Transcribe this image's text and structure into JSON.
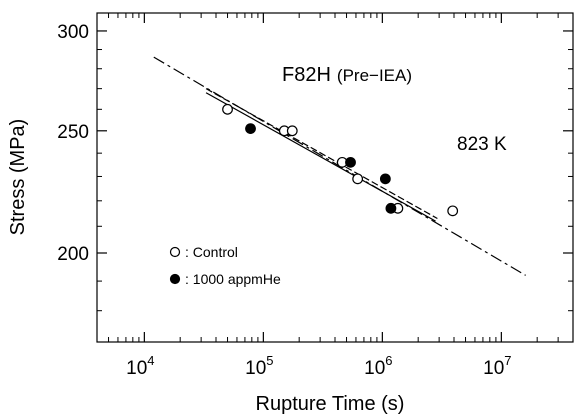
{
  "chart_data": {
    "type": "scatter",
    "xlabel": "Rupture Time  (s)",
    "ylabel": "Stress  (MPa)",
    "xscale": "log",
    "yscale": "log",
    "xlim": [
      4000,
      40000000
    ],
    "ylim": [
      170,
      310
    ],
    "x_ticks": [
      {
        "value": 10000,
        "base": "10",
        "exp": "4"
      },
      {
        "value": 100000,
        "base": "10",
        "exp": "5"
      },
      {
        "value": 1000000,
        "base": "10",
        "exp": "6"
      },
      {
        "value": 10000000,
        "base": "10",
        "exp": "7"
      }
    ],
    "y_ticks": [
      {
        "value": 200,
        "label": "200"
      },
      {
        "value": 250,
        "label": "250"
      },
      {
        "value": 300,
        "label": "300"
      }
    ],
    "annotations": [
      {
        "text": "F82H",
        "size": "large"
      },
      {
        "text": "(Pre−IEA)",
        "size": "small"
      },
      {
        "text": "823 K",
        "size": "large"
      }
    ],
    "legend": {
      "placement": "bottom-left",
      "entries": [
        {
          "label": ": Control",
          "marker": "open-circle"
        },
        {
          "label": ": 1000 appmHe",
          "marker": "filled-circle"
        }
      ]
    },
    "series": [
      {
        "name": ": Control",
        "marker": "open-circle",
        "points": [
          {
            "x": 50000,
            "y": 260
          },
          {
            "x": 150000,
            "y": 250
          },
          {
            "x": 175000,
            "y": 250
          },
          {
            "x": 460000,
            "y": 236
          },
          {
            "x": 620000,
            "y": 229
          },
          {
            "x": 1350000,
            "y": 217
          },
          {
            "x": 3900000,
            "y": 216
          }
        ]
      },
      {
        "name": ": 1000 appmHe",
        "marker": "filled-circle",
        "points": [
          {
            "x": 78000,
            "y": 251
          },
          {
            "x": 540000,
            "y": 236
          },
          {
            "x": 1060000,
            "y": 229
          },
          {
            "x": 1180000,
            "y": 217
          }
        ]
      }
    ],
    "fit_lines": [
      {
        "style": "solid",
        "from": {
          "x": 33000,
          "y": 268
        },
        "to": {
          "x": 2800000,
          "y": 212
        }
      },
      {
        "style": "dashed",
        "from": {
          "x": 33000,
          "y": 270
        },
        "to": {
          "x": 2900000,
          "y": 213
        }
      },
      {
        "style": "dash-dot",
        "from": {
          "x": 12000,
          "y": 286
        },
        "to": {
          "x": 16000000,
          "y": 192
        }
      }
    ]
  }
}
